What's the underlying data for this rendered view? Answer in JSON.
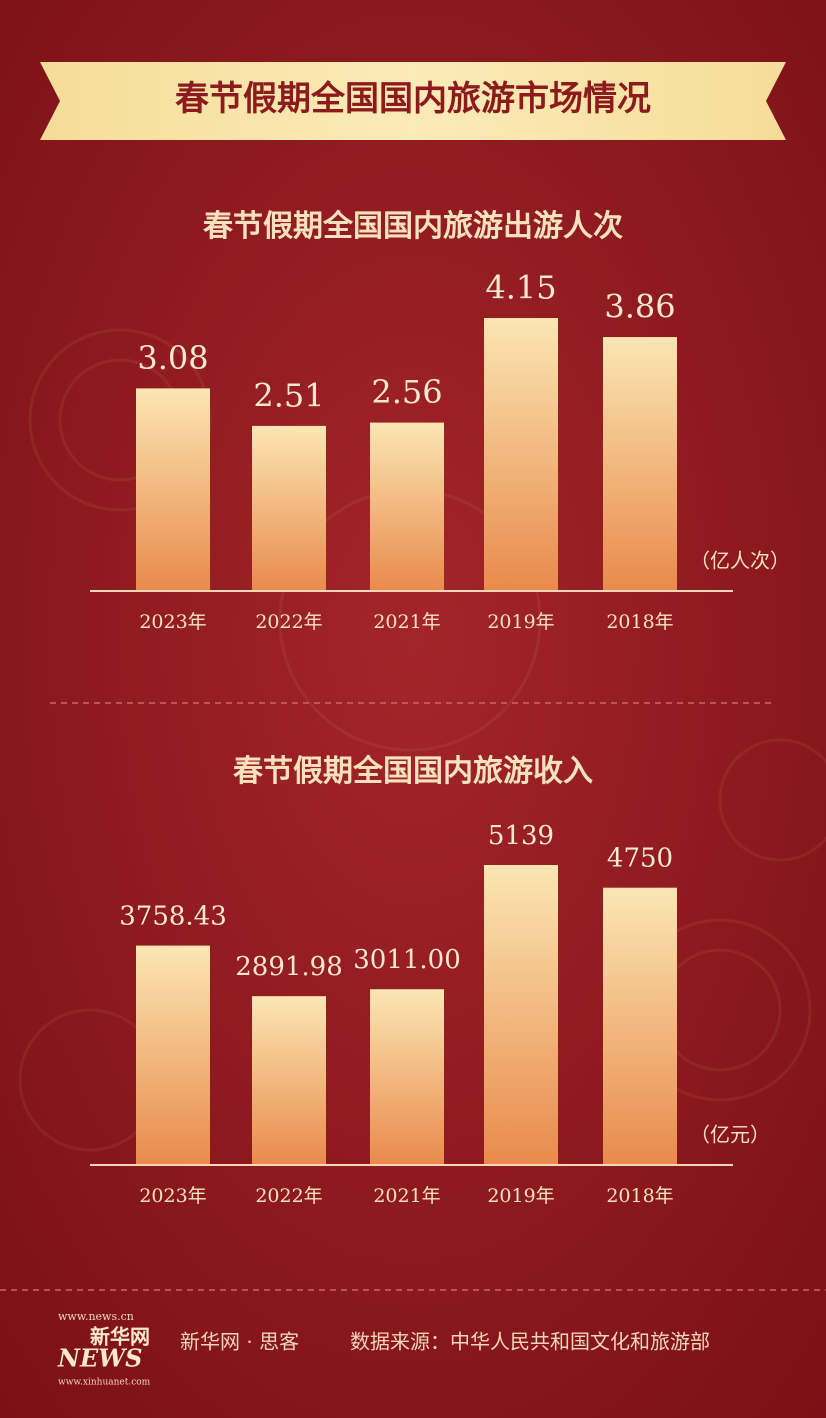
{
  "header": {
    "title": "春节假期全国国内旅游市场情况"
  },
  "chart_data": [
    {
      "type": "bar",
      "title": "春节假期全国国内旅游出游人次",
      "unit": "（亿人次）",
      "categories": [
        "2023年",
        "2022年",
        "2021年",
        "2019年",
        "2018年"
      ],
      "values": [
        3.08,
        2.51,
        2.56,
        4.15,
        3.86
      ]
    },
    {
      "type": "bar",
      "title": "春节假期全国国内旅游收入",
      "unit": "（亿元）",
      "categories": [
        "2023年",
        "2022年",
        "2021年",
        "2019年",
        "2018年"
      ],
      "values": [
        3758.43,
        2891.98,
        3011,
        5139,
        4750
      ],
      "value_labels": [
        "3758.43",
        "2891.98",
        "3011.00",
        "5139",
        "4750"
      ]
    }
  ],
  "footer": {
    "logo_site": "www.news.cn",
    "logo_name": "新华网",
    "logo_word": "NEWS",
    "logo_site2": "www.xinhuanet.com",
    "credit": "新华网 · 思客",
    "source": "数据来源：中华人民共和国文化和旅游部"
  }
}
